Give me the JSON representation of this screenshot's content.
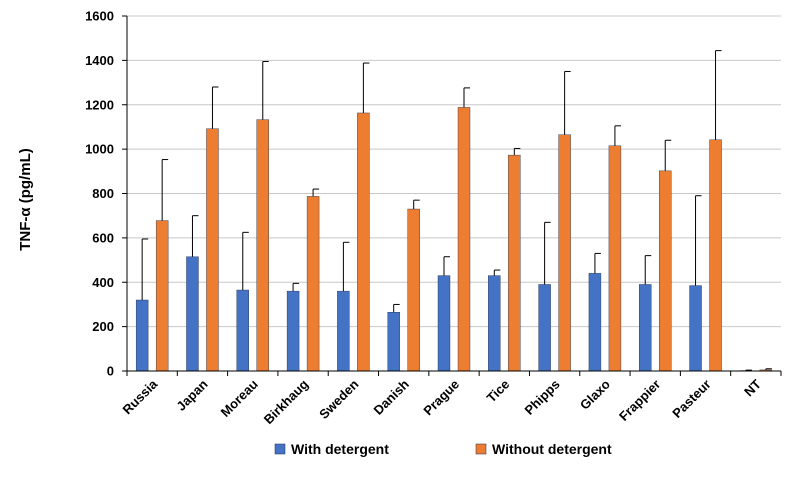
{
  "chart_data": {
    "type": "bar",
    "title": "",
    "xlabel": "",
    "ylabel": "TNF-α (pg/mL)",
    "ylim": [
      0,
      1600
    ],
    "yticks": [
      0,
      200,
      400,
      600,
      800,
      1000,
      1200,
      1400,
      1600
    ],
    "grid": "horizontal",
    "legend_position": "bottom",
    "error_bars": "upper",
    "categories": [
      "Russia",
      "Japan",
      "Moreau",
      "Birkhaug",
      "Sweden",
      "Danish",
      "Prague",
      "Tice",
      "Phipps",
      "Glaxo",
      "Frappier",
      "Pasteur",
      "NT"
    ],
    "series": [
      {
        "name": "With detergent",
        "color": "#4472C4",
        "values": [
          320,
          515,
          365,
          360,
          360,
          265,
          430,
          430,
          390,
          440,
          390,
          385,
          2
        ],
        "errors": [
          275,
          185,
          260,
          35,
          220,
          35,
          85,
          25,
          280,
          90,
          130,
          405,
          2
        ]
      },
      {
        "name": "Without detergent",
        "color": "#ED7D31",
        "values": [
          678,
          1092,
          1133,
          787,
          1163,
          730,
          1188,
          973,
          1065,
          1015,
          902,
          1042,
          5
        ],
        "errors": [
          275,
          188,
          262,
          33,
          225,
          40,
          88,
          30,
          285,
          90,
          138,
          402,
          5
        ]
      }
    ]
  }
}
